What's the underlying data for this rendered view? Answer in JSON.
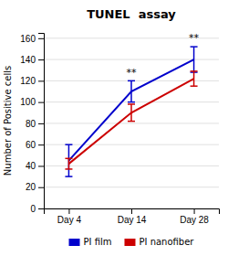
{
  "chart_data": {
    "type": "line",
    "title": "TUNEL  assay",
    "categories": [
      "Day 4",
      "Day 14",
      "Day 28"
    ],
    "y_label": "Number of Positive cells",
    "ylim": [
      0,
      165
    ],
    "yticks": [
      0,
      20,
      40,
      60,
      80,
      100,
      120,
      140,
      160
    ],
    "grid": true,
    "legend": "bottom",
    "series": [
      {
        "name": "PI film",
        "color": "#0000cc",
        "values": [
          45,
          110,
          140
        ],
        "errors": [
          15,
          10,
          12
        ]
      },
      {
        "name": "PI nanofiber",
        "color": "#cc0000",
        "values": [
          42,
          90,
          122
        ],
        "errors": [
          5,
          8,
          7
        ]
      }
    ],
    "annotations": [
      {
        "x": "Day 14",
        "y": 125,
        "text": "**"
      },
      {
        "x": "Day 28",
        "y": 157,
        "text": "**"
      }
    ]
  }
}
